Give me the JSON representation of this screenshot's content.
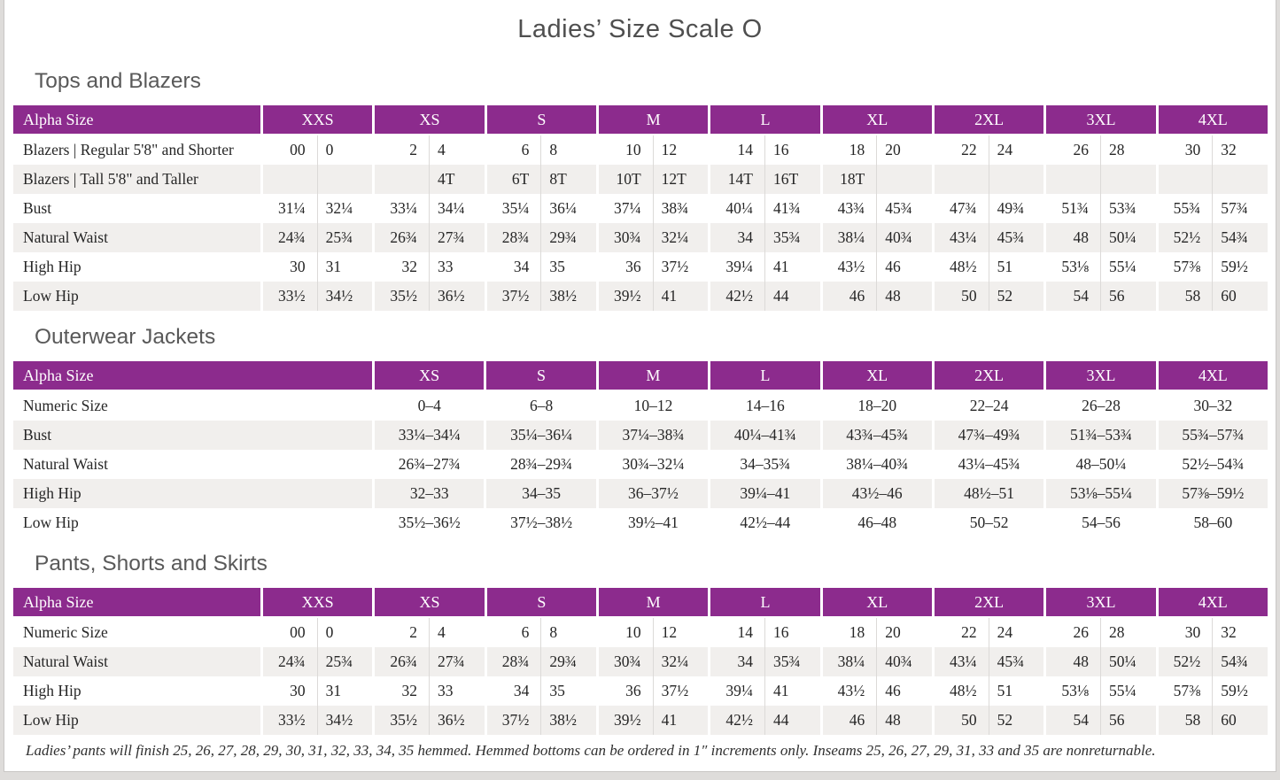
{
  "page": {
    "title": "Ladies’ Size Scale O",
    "footnote": "Ladies’ pants will finish 25, 26, 27, 28, 29, 30, 31, 32, 33, 34, 35 hemmed. Hemmed bottoms can be ordered in 1″ increments only. Inseams 25, 26, 27, 29, 31, 33 and 35 are nonreturnable."
  },
  "colors": {
    "header_purple": "#8c2b8d",
    "alt_row_gray": "#f1efed",
    "heading_gray": "#595959",
    "text_dark": "#262626"
  },
  "tables": [
    {
      "section_title": "Tops and Blazers",
      "type": "paired",
      "header_label": "Alpha Size",
      "size_groups": [
        "XXS",
        "XS",
        "S",
        "M",
        "L",
        "XL",
        "2XL",
        "3XL",
        "4XL"
      ],
      "rows": [
        {
          "label": "Blazers  |  Regular 5'8\" and Shorter",
          "values": [
            "00",
            "0",
            "2",
            "4",
            "6",
            "8",
            "10",
            "12",
            "14",
            "16",
            "18",
            "20",
            "22",
            "24",
            "26",
            "28",
            "30",
            "32"
          ]
        },
        {
          "label": "Blazers  |  Tall 5'8\" and Taller",
          "values": [
            "",
            "",
            "",
            "4T",
            "6T",
            "8T",
            "10T",
            "12T",
            "14T",
            "16T",
            "18T",
            "",
            "",
            "",
            "",
            "",
            "",
            ""
          ]
        },
        {
          "label": "Bust",
          "values": [
            "31¼",
            "32¼",
            "33¼",
            "34¼",
            "35¼",
            "36¼",
            "37¼",
            "38¾",
            "40¼",
            "41¾",
            "43¾",
            "45¾",
            "47¾",
            "49¾",
            "51¾",
            "53¾",
            "55¾",
            "57¾"
          ]
        },
        {
          "label": "Natural Waist",
          "values": [
            "24¾",
            "25¾",
            "26¾",
            "27¾",
            "28¾",
            "29¾",
            "30¾",
            "32¼",
            "34",
            "35¾",
            "38¼",
            "40¾",
            "43¼",
            "45¾",
            "48",
            "50¼",
            "52½",
            "54¾"
          ]
        },
        {
          "label": "High Hip",
          "values": [
            "30",
            "31",
            "32",
            "33",
            "34",
            "35",
            "36",
            "37½",
            "39¼",
            "41",
            "43½",
            "46",
            "48½",
            "51",
            "53⅛",
            "55¼",
            "57⅜",
            "59½"
          ]
        },
        {
          "label": "Low Hip",
          "values": [
            "33½",
            "34½",
            "35½",
            "36½",
            "37½",
            "38½",
            "39½",
            "41",
            "42½",
            "44",
            "46",
            "48",
            "50",
            "52",
            "54",
            "56",
            "58",
            "60"
          ]
        }
      ]
    },
    {
      "section_title": "Outerwear Jackets",
      "type": "single",
      "header_label": "Alpha Size",
      "size_groups": [
        "XS",
        "S",
        "M",
        "L",
        "XL",
        "2XL",
        "3XL",
        "4XL"
      ],
      "rows": [
        {
          "label": "Numeric Size",
          "values": [
            "0–4",
            "6–8",
            "10–12",
            "14–16",
            "18–20",
            "22–24",
            "26–28",
            "30–32"
          ]
        },
        {
          "label": "Bust",
          "values": [
            "33¼–34¼",
            "35¼–36¼",
            "37¼–38¾",
            "40¼–41¾",
            "43¾–45¾",
            "47¾–49¾",
            "51¾–53¾",
            "55¾–57¾"
          ]
        },
        {
          "label": "Natural Waist",
          "values": [
            "26¾–27¾",
            "28¾–29¾",
            "30¾–32¼",
            "34–35¾",
            "38¼–40¾",
            "43¼–45¾",
            "48–50¼",
            "52½–54¾"
          ]
        },
        {
          "label": "High Hip",
          "values": [
            "32–33",
            "34–35",
            "36–37½",
            "39¼–41",
            "43½–46",
            "48½–51",
            "53⅛–55¼",
            "57⅜–59½"
          ]
        },
        {
          "label": "Low Hip",
          "values": [
            "35½–36½",
            "37½–38½",
            "39½–41",
            "42½–44",
            "46–48",
            "50–52",
            "54–56",
            "58–60"
          ]
        }
      ]
    },
    {
      "section_title": "Pants, Shorts and Skirts",
      "type": "paired",
      "header_label": "Alpha Size",
      "size_groups": [
        "XXS",
        "XS",
        "S",
        "M",
        "L",
        "XL",
        "2XL",
        "3XL",
        "4XL"
      ],
      "rows": [
        {
          "label": "Numeric Size",
          "values": [
            "00",
            "0",
            "2",
            "4",
            "6",
            "8",
            "10",
            "12",
            "14",
            "16",
            "18",
            "20",
            "22",
            "24",
            "26",
            "28",
            "30",
            "32"
          ]
        },
        {
          "label": "Natural Waist",
          "values": [
            "24¾",
            "25¾",
            "26¾",
            "27¾",
            "28¾",
            "29¾",
            "30¾",
            "32¼",
            "34",
            "35¾",
            "38¼",
            "40¾",
            "43¼",
            "45¾",
            "48",
            "50¼",
            "52½",
            "54¾"
          ]
        },
        {
          "label": "High Hip",
          "values": [
            "30",
            "31",
            "32",
            "33",
            "34",
            "35",
            "36",
            "37½",
            "39¼",
            "41",
            "43½",
            "46",
            "48½",
            "51",
            "53⅛",
            "55¼",
            "57⅜",
            "59½"
          ]
        },
        {
          "label": "Low Hip",
          "values": [
            "33½",
            "34½",
            "35½",
            "36½",
            "37½",
            "38½",
            "39½",
            "41",
            "42½",
            "44",
            "46",
            "48",
            "50",
            "52",
            "54",
            "56",
            "58",
            "60"
          ]
        }
      ]
    }
  ]
}
